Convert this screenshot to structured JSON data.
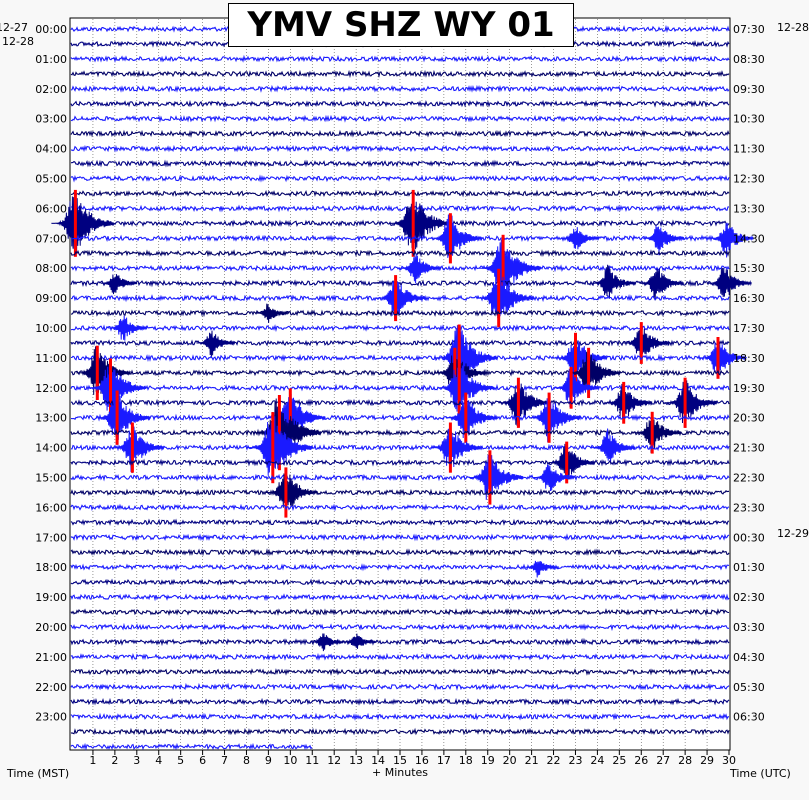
{
  "chart_data": {
    "type": "line",
    "title": "YMV SHZ WY 01",
    "xlabel": "+ Minutes",
    "xlim": [
      0,
      30
    ],
    "x_ticks": [
      "1",
      "2",
      "3",
      "4",
      "5",
      "6",
      "7",
      "8",
      "9",
      "10",
      "11",
      "12",
      "13",
      "14",
      "15",
      "16",
      "17",
      "18",
      "19",
      "20",
      "21",
      "22",
      "23",
      "24",
      "25",
      "26",
      "27",
      "28",
      "29",
      "30"
    ],
    "left_axis_label": "Time (MST)",
    "right_axis_label": "Time (UTC)",
    "left_date_top": "12-27",
    "left_date_second": "12-28",
    "right_date_top": "12-28",
    "right_date_mid": "12-29",
    "left_time_labels": [
      "00:00",
      "01:00",
      "02:00",
      "03:00",
      "04:00",
      "05:00",
      "06:00",
      "07:00",
      "08:00",
      "09:00",
      "10:00",
      "11:00",
      "12:00",
      "13:00",
      "14:00",
      "15:00",
      "16:00",
      "17:00",
      "18:00",
      "19:00",
      "20:00",
      "21:00",
      "22:00",
      "23:00"
    ],
    "right_time_labels": [
      "07:30",
      "08:30",
      "09:30",
      "10:30",
      "11:30",
      "12:30",
      "13:30",
      "14:30",
      "15:30",
      "16:30",
      "17:30",
      "18:30",
      "19:30",
      "20:30",
      "21:30",
      "22:30",
      "23:30",
      "00:30",
      "01:30",
      "02:30",
      "03:30",
      "04:30",
      "05:30",
      "06:30"
    ],
    "trace_count": 49,
    "trace_interval_minutes": 30,
    "last_trace_end_minute": 11,
    "colors": {
      "cycle": [
        "#1a1aff",
        "#000080",
        "#1a1aff",
        "#000066"
      ],
      "clipped": "#ff0000",
      "background": "#ffffff",
      "grid": "#555555"
    },
    "grid": true,
    "events": [
      {
        "trace": 13,
        "minute": 0.2,
        "amp": 1.6
      },
      {
        "trace": 13,
        "minute": 15.6,
        "amp": 1.6
      },
      {
        "trace": 14,
        "minute": 17.3,
        "amp": 1.2
      },
      {
        "trace": 14,
        "minute": 23.0,
        "amp": 0.7
      },
      {
        "trace": 14,
        "minute": 26.8,
        "amp": 0.8
      },
      {
        "trace": 14,
        "minute": 29.9,
        "amp": 0.9
      },
      {
        "trace": 16,
        "minute": 15.7,
        "amp": 0.8
      },
      {
        "trace": 16,
        "minute": 19.7,
        "amp": 1.6
      },
      {
        "trace": 17,
        "minute": 2.0,
        "amp": 0.6
      },
      {
        "trace": 17,
        "minute": 24.5,
        "amp": 0.9
      },
      {
        "trace": 17,
        "minute": 26.7,
        "amp": 0.9
      },
      {
        "trace": 17,
        "minute": 29.8,
        "amp": 0.9
      },
      {
        "trace": 18,
        "minute": 14.8,
        "amp": 1.1
      },
      {
        "trace": 18,
        "minute": 19.5,
        "amp": 1.4
      },
      {
        "trace": 19,
        "minute": 9.0,
        "amp": 0.5
      },
      {
        "trace": 20,
        "minute": 2.4,
        "amp": 0.7
      },
      {
        "trace": 21,
        "minute": 6.4,
        "amp": 0.7
      },
      {
        "trace": 21,
        "minute": 26.0,
        "amp": 1.0
      },
      {
        "trace": 22,
        "minute": 17.7,
        "amp": 1.6
      },
      {
        "trace": 22,
        "minute": 23.0,
        "amp": 1.2
      },
      {
        "trace": 22,
        "minute": 29.5,
        "amp": 1.0
      },
      {
        "trace": 23,
        "minute": 1.2,
        "amp": 1.3
      },
      {
        "trace": 23,
        "minute": 17.5,
        "amp": 1.2
      },
      {
        "trace": 23,
        "minute": 23.6,
        "amp": 1.2
      },
      {
        "trace": 24,
        "minute": 1.8,
        "amp": 1.4
      },
      {
        "trace": 24,
        "minute": 17.7,
        "amp": 1.4
      },
      {
        "trace": 24,
        "minute": 22.8,
        "amp": 1.0
      },
      {
        "trace": 25,
        "minute": 20.4,
        "amp": 1.2
      },
      {
        "trace": 25,
        "minute": 25.2,
        "amp": 1.0
      },
      {
        "trace": 25,
        "minute": 28.0,
        "amp": 1.2
      },
      {
        "trace": 26,
        "minute": 2.1,
        "amp": 1.3
      },
      {
        "trace": 26,
        "minute": 10.0,
        "amp": 1.4
      },
      {
        "trace": 26,
        "minute": 18.0,
        "amp": 1.2
      },
      {
        "trace": 26,
        "minute": 21.8,
        "amp": 1.2
      },
      {
        "trace": 27,
        "minute": 9.5,
        "amp": 1.8
      },
      {
        "trace": 27,
        "minute": 26.5,
        "amp": 1.0
      },
      {
        "trace": 28,
        "minute": 2.8,
        "amp": 1.2
      },
      {
        "trace": 28,
        "minute": 9.2,
        "amp": 1.7
      },
      {
        "trace": 28,
        "minute": 17.3,
        "amp": 1.2
      },
      {
        "trace": 28,
        "minute": 24.5,
        "amp": 0.9
      },
      {
        "trace": 29,
        "minute": 22.6,
        "amp": 1.0
      },
      {
        "trace": 30,
        "minute": 19.1,
        "amp": 1.3
      },
      {
        "trace": 30,
        "minute": 21.8,
        "amp": 0.8
      },
      {
        "trace": 31,
        "minute": 9.8,
        "amp": 1.2
      },
      {
        "trace": 36,
        "minute": 21.3,
        "amp": 0.5
      },
      {
        "trace": 41,
        "minute": 11.5,
        "amp": 0.5
      },
      {
        "trace": 41,
        "minute": 13.0,
        "amp": 0.5
      }
    ]
  }
}
